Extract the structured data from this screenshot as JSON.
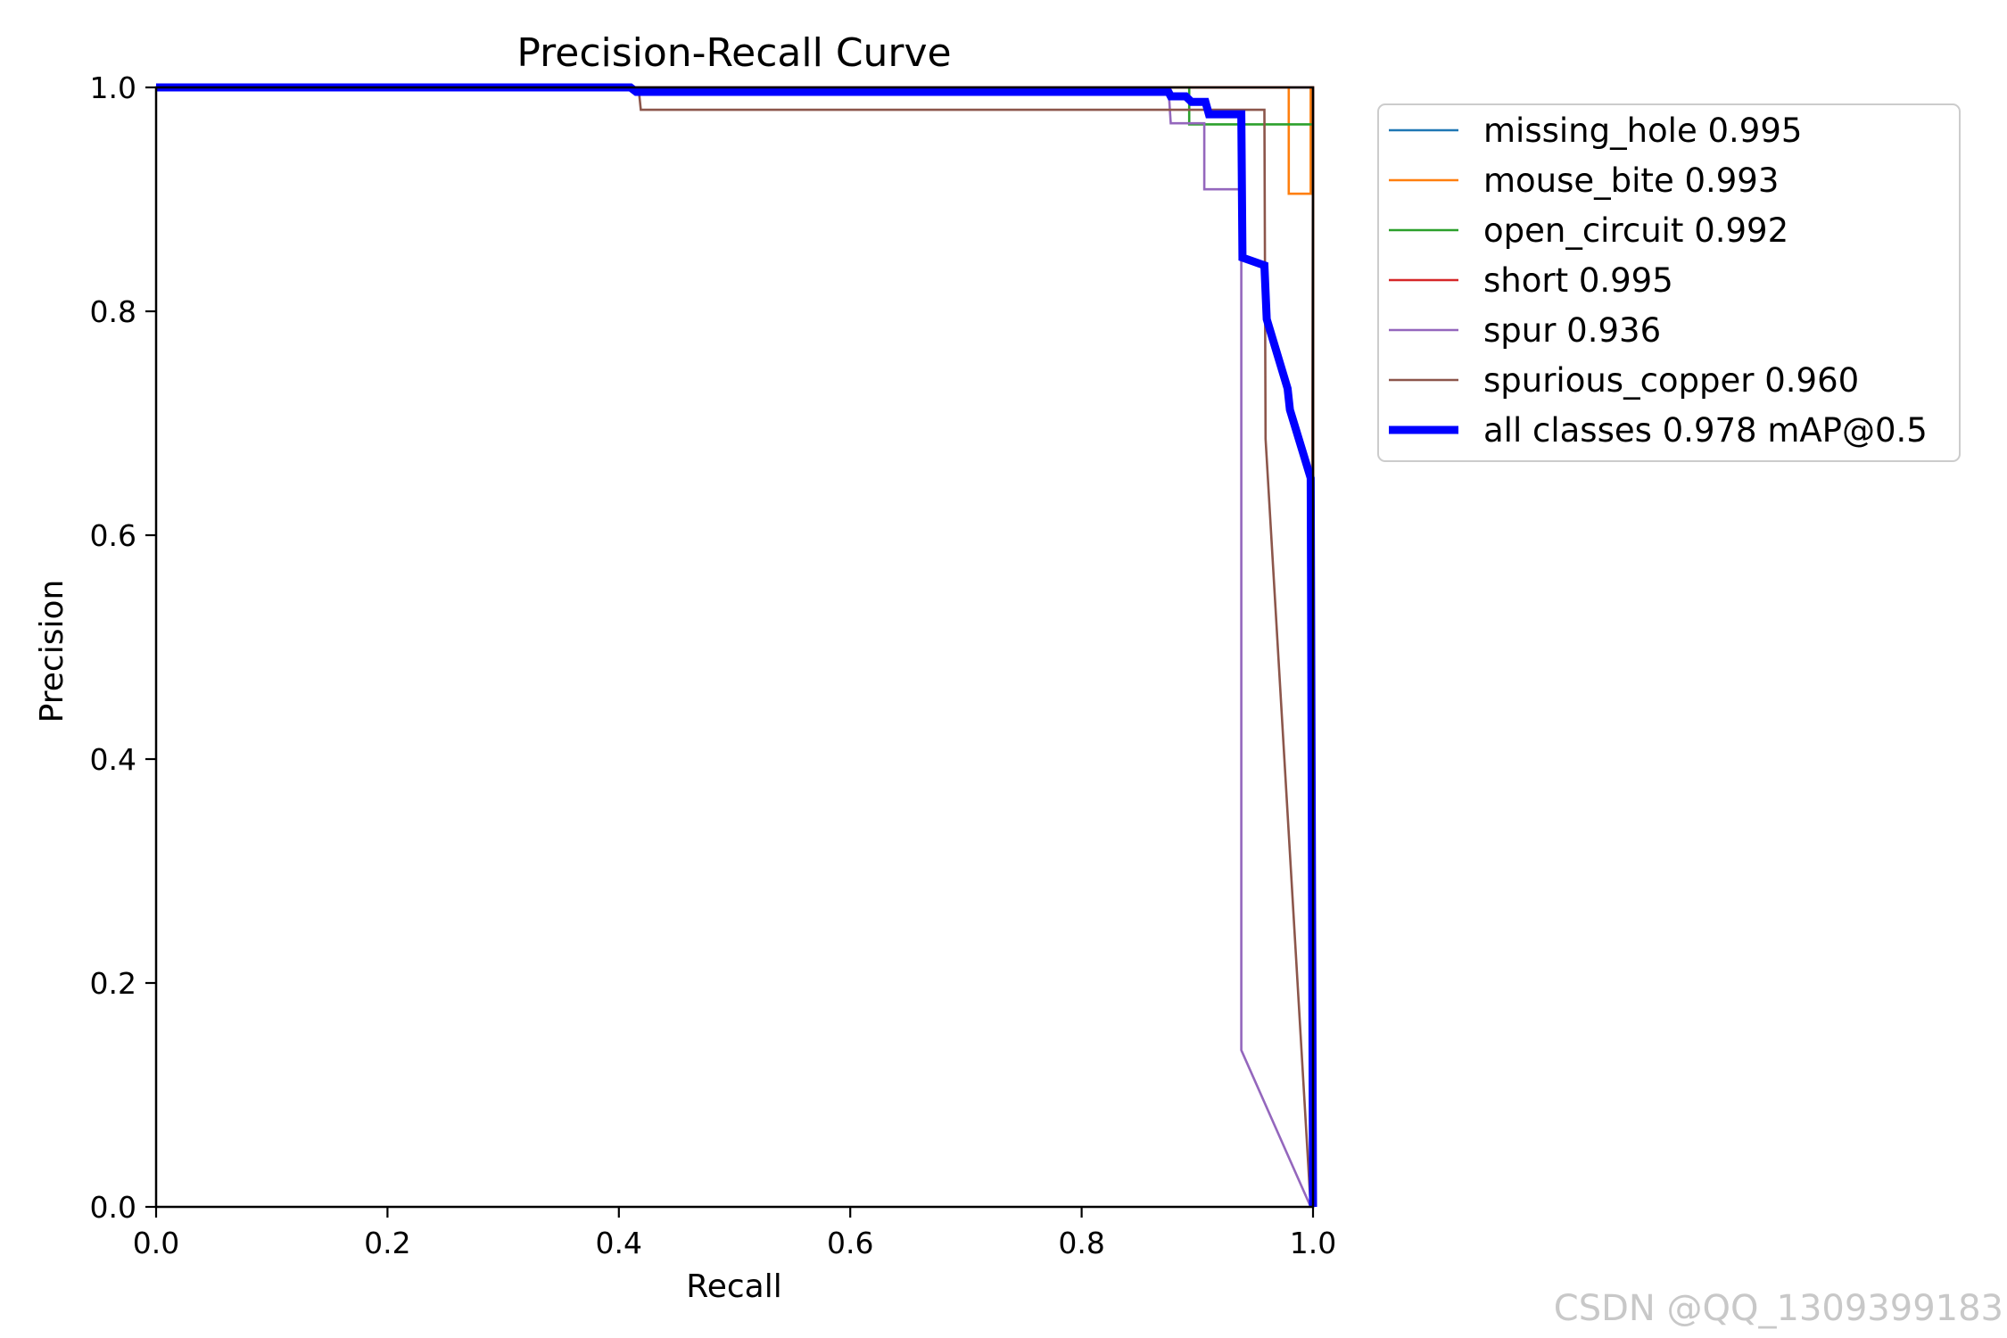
{
  "chart_data": {
    "type": "line",
    "title": "Precision-Recall Curve",
    "xlabel": "Recall",
    "ylabel": "Precision",
    "xlim": [
      0,
      1
    ],
    "ylim": [
      0,
      1
    ],
    "xticks": [
      "0.0",
      "0.2",
      "0.4",
      "0.6",
      "0.8",
      "1.0"
    ],
    "yticks": [
      "0.0",
      "0.2",
      "0.4",
      "0.6",
      "0.8",
      "1.0"
    ],
    "grid": false,
    "legend_position": "outside-right-top",
    "series": [
      {
        "name": "missing_hole 0.995",
        "color": "#1f77b4",
        "width": "thin",
        "points": [
          [
            0,
            1
          ],
          [
            0.995,
            1
          ],
          [
            1.0,
            1
          ],
          [
            1.0,
            0
          ]
        ]
      },
      {
        "name": "mouse_bite 0.993",
        "color": "#ff7f0e",
        "width": "thin",
        "points": [
          [
            0,
            1
          ],
          [
            0.979,
            1
          ],
          [
            0.979,
            0.905
          ],
          [
            0.998,
            0.905
          ],
          [
            0.998,
            1
          ],
          [
            1.0,
            1
          ],
          [
            1.0,
            0
          ]
        ]
      },
      {
        "name": "open_circuit 0.992",
        "color": "#2ca02c",
        "width": "thin",
        "points": [
          [
            0,
            1
          ],
          [
            0.893,
            1
          ],
          [
            0.893,
            0.967
          ],
          [
            1.0,
            0.967
          ],
          [
            1.0,
            0
          ]
        ]
      },
      {
        "name": "short 0.995",
        "color": "#d62728",
        "width": "thin",
        "points": [
          [
            0,
            1
          ],
          [
            1.0,
            1
          ],
          [
            1.0,
            0
          ]
        ]
      },
      {
        "name": "spur 0.936",
        "color": "#9467bd",
        "width": "thin",
        "points": [
          [
            0,
            1
          ],
          [
            0.875,
            1
          ],
          [
            0.877,
            0.968
          ],
          [
            0.906,
            0.968
          ],
          [
            0.906,
            0.909
          ],
          [
            0.938,
            0.909
          ],
          [
            0.938,
            0.14
          ],
          [
            0.998,
            0
          ]
        ]
      },
      {
        "name": "spurious_copper 0.960",
        "color": "#8c564b",
        "width": "thin",
        "points": [
          [
            0,
            1
          ],
          [
            0.417,
            1
          ],
          [
            0.419,
            0.98
          ],
          [
            0.958,
            0.98
          ],
          [
            0.959,
            0.686
          ],
          [
            0.998,
            0
          ],
          [
            1.0,
            0.98
          ],
          [
            1.0,
            1
          ]
        ]
      },
      {
        "name": "all classes 0.978 mAP@0.5",
        "color": "#0000ff",
        "width": "thick",
        "points": [
          [
            0,
            1
          ],
          [
            0.41,
            1
          ],
          [
            0.415,
            0.996
          ],
          [
            0.875,
            0.996
          ],
          [
            0.877,
            0.992
          ],
          [
            0.89,
            0.992
          ],
          [
            0.895,
            0.987
          ],
          [
            0.907,
            0.987
          ],
          [
            0.91,
            0.976
          ],
          [
            0.938,
            0.976
          ],
          [
            0.939,
            0.848
          ],
          [
            0.958,
            0.841
          ],
          [
            0.96,
            0.793
          ],
          [
            0.978,
            0.731
          ],
          [
            0.98,
            0.712
          ],
          [
            0.998,
            0.651
          ],
          [
            1.0,
            0
          ]
        ]
      }
    ],
    "legend": [
      "missing_hole 0.995",
      "mouse_bite 0.993",
      "open_circuit 0.992",
      "short 0.995",
      "spur 0.936",
      "spurious_copper 0.960",
      "all classes 0.978 mAP@0.5"
    ]
  },
  "watermark": "CSDN @QQ_1309399183"
}
